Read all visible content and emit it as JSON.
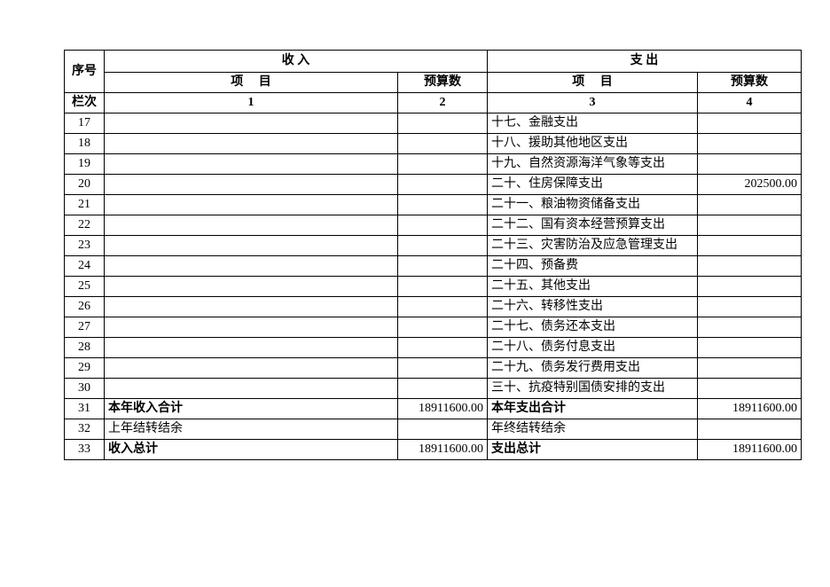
{
  "table": {
    "border_color": "#000000",
    "background_color": "#ffffff",
    "font_family": "SimSun",
    "header": {
      "seq": "序号",
      "income": "收 入",
      "expend": "支 出",
      "item": "项　 目",
      "budget": "预算数",
      "lanci": "栏次",
      "c1": "1",
      "c2": "2",
      "c3": "3",
      "c4": "4"
    },
    "rows": [
      {
        "seq": "17",
        "in_item": "",
        "in_val": "",
        "out_item": "十七、金融支出",
        "out_val": ""
      },
      {
        "seq": "18",
        "in_item": "",
        "in_val": "",
        "out_item": "十八、援助其他地区支出",
        "out_val": ""
      },
      {
        "seq": "19",
        "in_item": "",
        "in_val": "",
        "out_item": "十九、自然资源海洋气象等支出",
        "out_val": ""
      },
      {
        "seq": "20",
        "in_item": "",
        "in_val": "",
        "out_item": "二十、住房保障支出",
        "out_val": "202500.00"
      },
      {
        "seq": "21",
        "in_item": "",
        "in_val": "",
        "out_item": "二十一、粮油物资储备支出",
        "out_val": ""
      },
      {
        "seq": "22",
        "in_item": "",
        "in_val": "",
        "out_item": "二十二、国有资本经营预算支出",
        "out_val": ""
      },
      {
        "seq": "23",
        "in_item": "",
        "in_val": "",
        "out_item": "二十三、灾害防治及应急管理支出",
        "out_val": ""
      },
      {
        "seq": "24",
        "in_item": "",
        "in_val": "",
        "out_item": "二十四、预备费",
        "out_val": ""
      },
      {
        "seq": "25",
        "in_item": "",
        "in_val": "",
        "out_item": "二十五、其他支出",
        "out_val": ""
      },
      {
        "seq": "26",
        "in_item": "",
        "in_val": "",
        "out_item": "二十六、转移性支出",
        "out_val": ""
      },
      {
        "seq": "27",
        "in_item": "",
        "in_val": "",
        "out_item": "二十七、债务还本支出",
        "out_val": ""
      },
      {
        "seq": "28",
        "in_item": "",
        "in_val": "",
        "out_item": "二十八、债务付息支出",
        "out_val": ""
      },
      {
        "seq": "29",
        "in_item": "",
        "in_val": "",
        "out_item": "二十九、债务发行费用支出",
        "out_val": ""
      },
      {
        "seq": "30",
        "in_item": "",
        "in_val": "",
        "out_item": "三十、抗疫特别国债安排的支出",
        "out_val": ""
      },
      {
        "seq": "31",
        "in_item": "本年收入合计",
        "in_val": "18911600.00",
        "out_item": "本年支出合计",
        "out_val": "18911600.00",
        "bold": true
      },
      {
        "seq": "32",
        "in_item": "上年结转结余",
        "in_val": "",
        "out_item": "年终结转结余",
        "out_val": ""
      },
      {
        "seq": "33",
        "in_item": "收入总计",
        "in_val": "18911600.00",
        "out_item": "支出总计",
        "out_val": "18911600.00",
        "bold": true
      }
    ]
  }
}
